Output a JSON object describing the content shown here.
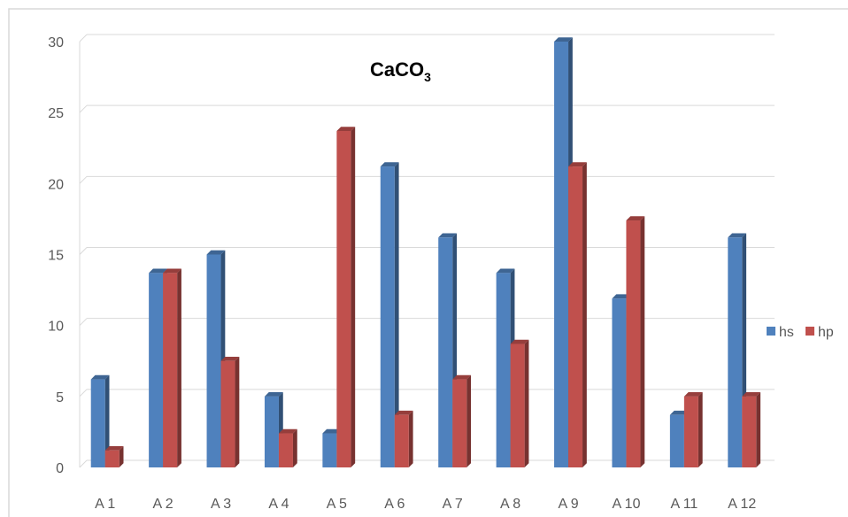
{
  "chart_data": {
    "type": "bar",
    "title": "CaCO",
    "title_subscript": "3",
    "categories": [
      "A 1",
      "A 2",
      "A 3",
      "A 4",
      "A 5",
      "A 6",
      "A 7",
      "A 8",
      "A 9",
      "A 10",
      "A 11",
      "A 12"
    ],
    "series": [
      {
        "name": "hs",
        "color": "#4F81BD",
        "values": [
          6.2,
          13.7,
          15.0,
          5.0,
          2.4,
          21.2,
          16.2,
          13.7,
          30.0,
          11.9,
          3.7,
          16.2
        ]
      },
      {
        "name": "hp",
        "color": "#C0504D",
        "values": [
          1.2,
          13.7,
          7.5,
          2.4,
          23.7,
          3.7,
          6.2,
          8.7,
          21.2,
          17.4,
          5.0,
          5.0
        ]
      }
    ],
    "y_ticks": [
      "0",
      "5",
      "10",
      "15",
      "20",
      "25",
      "30"
    ],
    "ylim": [
      0,
      30
    ],
    "grid": true,
    "legend_position": "right",
    "style": "3d-column"
  }
}
